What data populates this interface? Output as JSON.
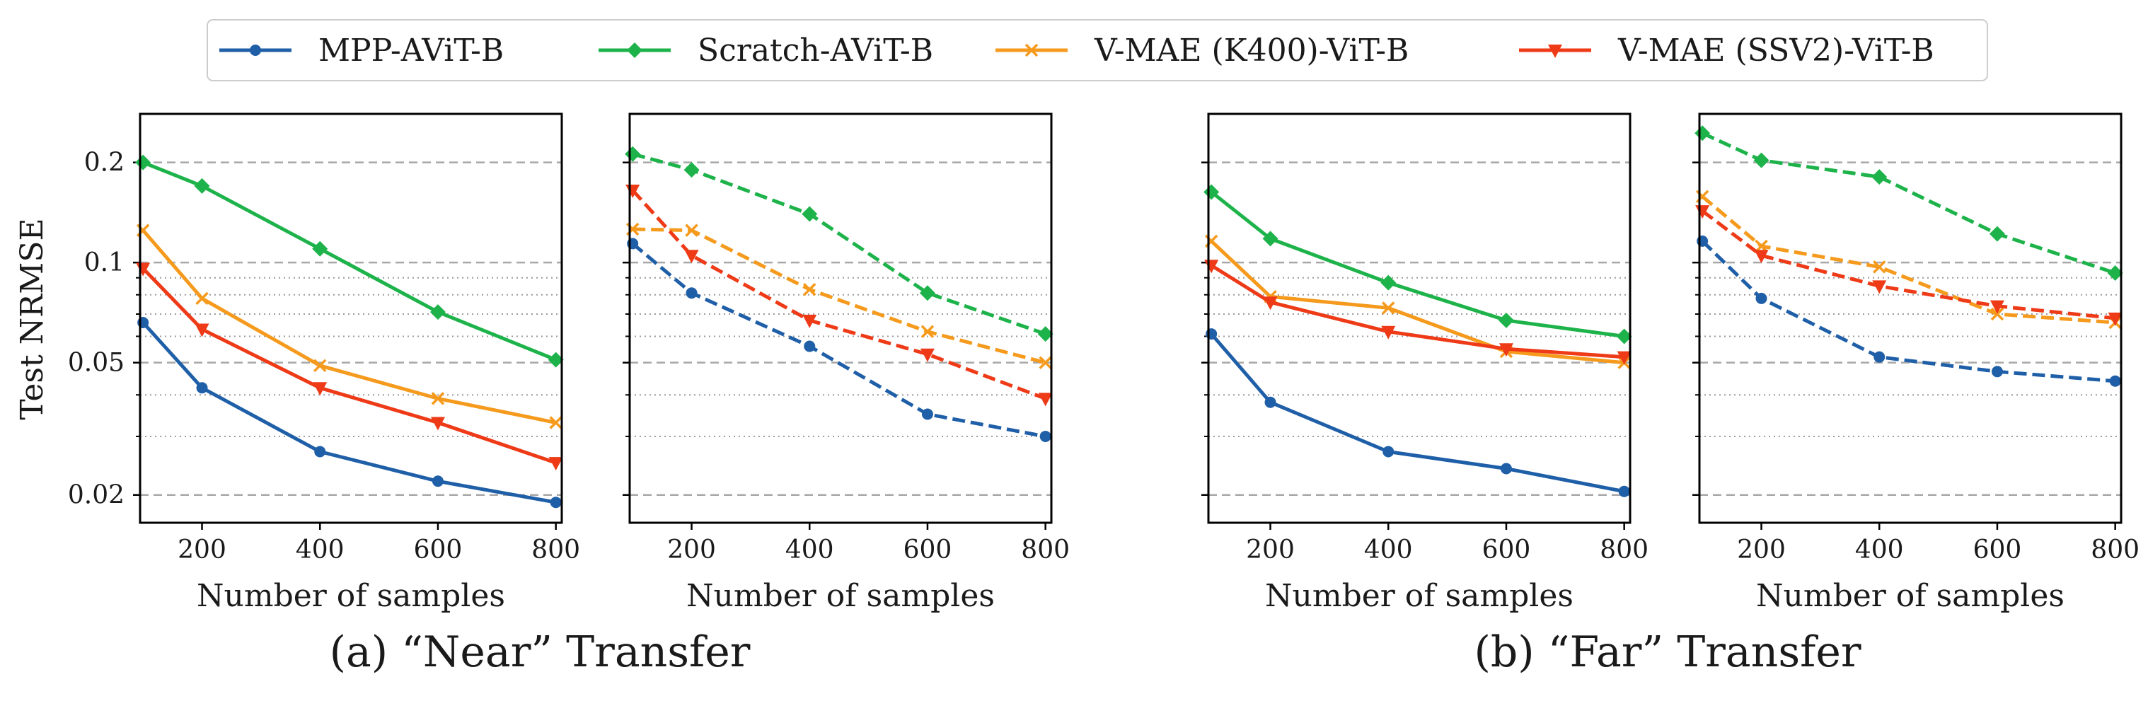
{
  "figure": {
    "captions": [
      "(a) “Near” Transfer",
      "(b) “Far” Transfer"
    ]
  },
  "legend": [
    {
      "label": "MPP-AViT-B",
      "color": "#1f5fa8",
      "marker": "circle"
    },
    {
      "label": "Scratch-AViT-B",
      "color": "#1db34a",
      "marker": "diamond"
    },
    {
      "label": "V-MAE (K400)-ViT-B",
      "color": "#f59a1c",
      "marker": "x"
    },
    {
      "label": "V-MAE (SSV2)-ViT-B",
      "color": "#ee3a16",
      "marker": "triangle-down"
    }
  ],
  "chart_data": [
    {
      "type": "line",
      "group": "(a) “Near” Transfer",
      "x": [
        100,
        200,
        400,
        600,
        800
      ],
      "xlabel": "Number of samples",
      "ylabel": "Test NRMSE",
      "yscale": "log",
      "ylim": [
        0.0165,
        0.28
      ],
      "xlim": [
        95,
        810
      ],
      "xticks": [
        "200",
        "400",
        "600",
        "800"
      ],
      "yticks": [
        "0.02",
        "0.05",
        "0.1",
        "0.2"
      ],
      "linestyle": "solid",
      "series": [
        {
          "name": "MPP-AViT-B",
          "values": [
            0.066,
            0.042,
            0.027,
            0.022,
            0.019
          ]
        },
        {
          "name": "Scratch-AViT-B",
          "values": [
            0.2,
            0.17,
            0.11,
            0.071,
            0.051
          ]
        },
        {
          "name": "V-MAE (K400)-ViT-B",
          "values": [
            0.125,
            0.078,
            0.049,
            0.039,
            0.033
          ]
        },
        {
          "name": "V-MAE (SSV2)-ViT-B",
          "values": [
            0.096,
            0.063,
            0.042,
            0.033,
            0.025
          ]
        }
      ]
    },
    {
      "type": "line",
      "group": "(a) “Near” Transfer",
      "x": [
        100,
        200,
        400,
        600,
        800
      ],
      "xlabel": "Number of samples",
      "ylabel": "",
      "yscale": "log",
      "ylim": [
        0.0165,
        0.28
      ],
      "xlim": [
        95,
        810
      ],
      "xticks": [
        "200",
        "400",
        "600",
        "800"
      ],
      "yticks": [],
      "linestyle": "dashed",
      "series": [
        {
          "name": "MPP-AViT-B",
          "values": [
            0.114,
            0.081,
            0.056,
            0.035,
            0.03
          ]
        },
        {
          "name": "Scratch-AViT-B",
          "values": [
            0.212,
            0.19,
            0.14,
            0.081,
            0.061
          ]
        },
        {
          "name": "V-MAE (K400)-ViT-B",
          "values": [
            0.126,
            0.125,
            0.083,
            0.062,
            0.05
          ]
        },
        {
          "name": "V-MAE (SSV2)-ViT-B",
          "values": [
            0.165,
            0.105,
            0.067,
            0.053,
            0.039
          ]
        }
      ]
    },
    {
      "type": "line",
      "group": "(b) “Far” Transfer",
      "x": [
        100,
        200,
        400,
        600,
        800
      ],
      "xlabel": "Number of samples",
      "ylabel": "",
      "yscale": "log",
      "ylim": [
        0.0165,
        0.28
      ],
      "xlim": [
        95,
        810
      ],
      "xticks": [
        "200",
        "400",
        "600",
        "800"
      ],
      "yticks": [],
      "linestyle": "solid",
      "series": [
        {
          "name": "MPP-AViT-B",
          "values": [
            0.061,
            0.038,
            0.027,
            0.024,
            0.0205
          ]
        },
        {
          "name": "Scratch-AViT-B",
          "values": [
            0.163,
            0.118,
            0.087,
            0.067,
            0.06
          ]
        },
        {
          "name": "V-MAE (K400)-ViT-B",
          "values": [
            0.116,
            0.079,
            0.073,
            0.054,
            0.05
          ]
        },
        {
          "name": "V-MAE (SSV2)-ViT-B",
          "values": [
            0.098,
            0.076,
            0.062,
            0.055,
            0.052
          ]
        }
      ]
    },
    {
      "type": "line",
      "group": "(b) “Far” Transfer",
      "x": [
        100,
        200,
        400,
        600,
        800
      ],
      "xlabel": "Number of samples",
      "ylabel": "",
      "yscale": "log",
      "ylim": [
        0.0165,
        0.28
      ],
      "xlim": [
        95,
        810
      ],
      "xticks": [
        "200",
        "400",
        "600",
        "800"
      ],
      "yticks": [],
      "linestyle": "dashed",
      "series": [
        {
          "name": "MPP-AViT-B",
          "values": [
            0.116,
            0.078,
            0.052,
            0.047,
            0.044
          ]
        },
        {
          "name": "Scratch-AViT-B",
          "values": [
            0.245,
            0.203,
            0.181,
            0.122,
            0.093
          ]
        },
        {
          "name": "V-MAE (K400)-ViT-B",
          "values": [
            0.158,
            0.112,
            0.097,
            0.07,
            0.066
          ]
        },
        {
          "name": "V-MAE (SSV2)-ViT-B",
          "values": [
            0.143,
            0.105,
            0.085,
            0.074,
            0.068
          ]
        }
      ]
    }
  ]
}
